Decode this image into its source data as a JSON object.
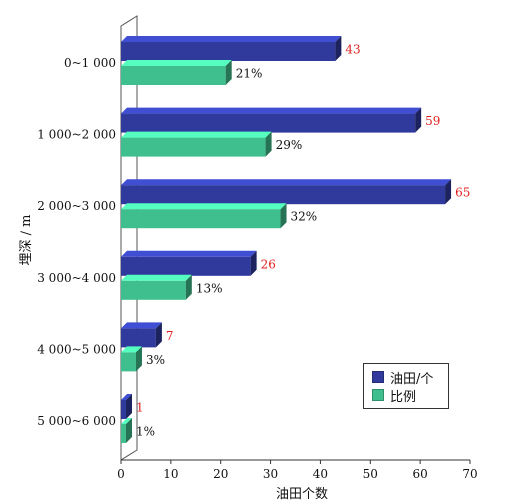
{
  "chart_data": {
    "type": "bar",
    "orientation": "horizontal",
    "categories": [
      "0~1 000",
      "1 000~2 000",
      "2 000~3 000",
      "3 000~4 000",
      "4 000~5 000",
      "5 000~6 000"
    ],
    "series": [
      {
        "name": "油田/个",
        "values": [
          43,
          59,
          65,
          26,
          7,
          1
        ],
        "labels": [
          "43",
          "59",
          "65",
          "26",
          "7",
          "1"
        ],
        "color": "#2f3a9c"
      },
      {
        "name": "比例",
        "values": [
          21,
          29,
          32,
          13,
          3,
          1
        ],
        "labels": [
          "21%",
          "29%",
          "32%",
          "13%",
          "3%",
          "1%"
        ],
        "color": "#3fbf8e"
      }
    ],
    "xlabel": "油田个数",
    "ylabel": "埋深 / m",
    "xlim": [
      0,
      70
    ],
    "xticks": [
      0,
      10,
      20,
      30,
      40,
      50,
      60,
      70
    ],
    "xtick_labels": [
      "0",
      "10",
      "20",
      "30",
      "40",
      "50",
      "60",
      "70"
    ],
    "grid": false,
    "legend_position": "bottom-right",
    "value_label_colors": {
      "count": "#e02020",
      "ratio": "#111111"
    }
  }
}
